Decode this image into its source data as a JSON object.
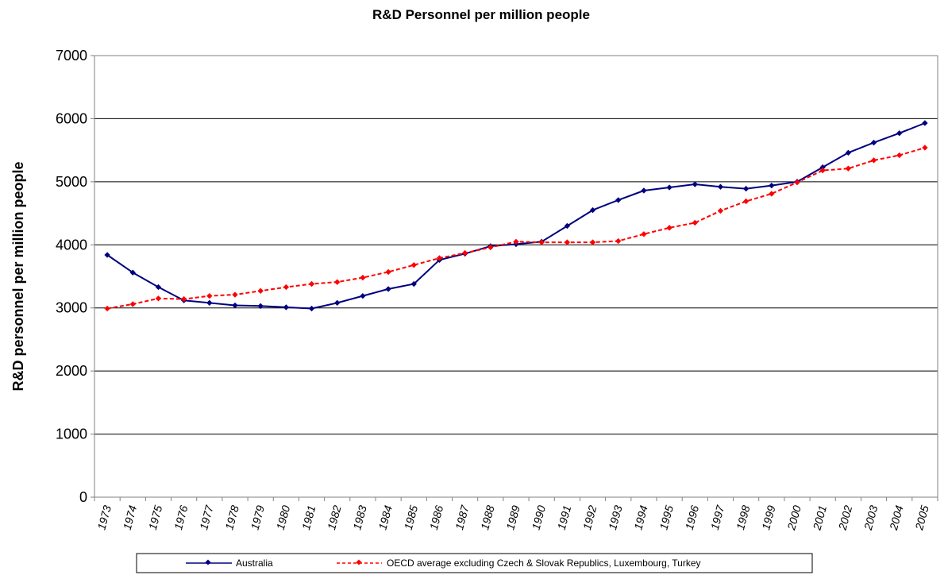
{
  "chart_data": {
    "type": "line",
    "title": "R&D Personnel per million people",
    "ylabel": "R&D personnel per million people",
    "xlabel": "",
    "ylim": [
      0,
      7000
    ],
    "yticks": [
      0,
      1000,
      2000,
      3000,
      4000,
      5000,
      6000,
      7000
    ],
    "grid": true,
    "legend_position": "bottom",
    "categories": [
      "1973",
      "1974",
      "1975",
      "1976",
      "1977",
      "1978",
      "1979",
      "1980",
      "1981",
      "1982",
      "1983",
      "1984",
      "1985",
      "1986",
      "1987",
      "1988",
      "1989",
      "1990",
      "1991",
      "1992",
      "1993",
      "1994",
      "1995",
      "1996",
      "1997",
      "1998",
      "1999",
      "2000",
      "2001",
      "2002",
      "2003",
      "2004",
      "2005"
    ],
    "series": [
      {
        "name": "Australia",
        "color": "#000080",
        "style": "solid",
        "values": [
          3840,
          3560,
          3330,
          3120,
          3080,
          3040,
          3030,
          3010,
          2990,
          3080,
          3190,
          3300,
          3380,
          3760,
          3860,
          3980,
          4010,
          4050,
          4300,
          4550,
          4710,
          4860,
          4910,
          4960,
          4920,
          4890,
          4940,
          5000,
          5230,
          5460,
          5620,
          5770,
          5930
        ]
      },
      {
        "name": "OECD average excluding Czech & Slovak Republics, Luxembourg, Turkey",
        "color": "#FF0000",
        "style": "dashed",
        "values": [
          2990,
          3060,
          3150,
          3140,
          3190,
          3210,
          3270,
          3330,
          3380,
          3410,
          3480,
          3570,
          3680,
          3790,
          3870,
          3960,
          4050,
          4040,
          4040,
          4040,
          4060,
          4170,
          4270,
          4350,
          4540,
          4690,
          4810,
          4990,
          5180,
          5210,
          5340,
          5420,
          5540
        ]
      }
    ]
  }
}
